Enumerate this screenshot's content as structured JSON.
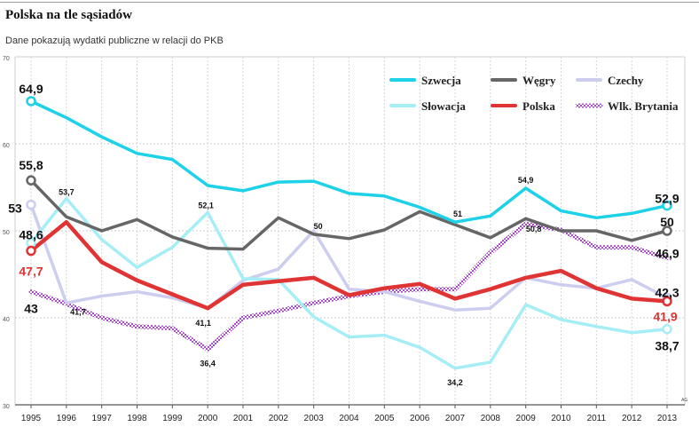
{
  "title": "Polska na tle sąsiadów",
  "subtitle": "Dane pokazują wydatki publiczne w relacji do PKB",
  "credit": "AG",
  "chart_data": {
    "type": "line",
    "title": "Polska na tle sąsiadów",
    "subtitle": "Dane pokazują wydatki publiczne w relacji do PKB",
    "xlabel": "",
    "ylabel": "",
    "ylim": [
      30,
      70
    ],
    "yticks": [
      "30",
      "40",
      "50",
      "60",
      "70"
    ],
    "grid": true,
    "legend_position": "top-right",
    "x": [
      "1995",
      "1996",
      "1997",
      "1998",
      "1999",
      "2000",
      "2001",
      "2002",
      "2003",
      "2004",
      "2005",
      "2006",
      "2007",
      "2008",
      "2009",
      "2010",
      "2011",
      "2012",
      "2013"
    ],
    "series": [
      {
        "name": "Szwecja",
        "color": "#1dd1e8",
        "style": "solid",
        "values": [
          64.9,
          63.0,
          60.8,
          58.9,
          58.2,
          55.2,
          54.6,
          55.6,
          55.7,
          54.3,
          54.0,
          52.7,
          51.0,
          51.7,
          54.9,
          52.3,
          51.5,
          52.0,
          52.9
        ]
      },
      {
        "name": "Węgry",
        "color": "#666666",
        "style": "solid",
        "values": [
          55.8,
          51.6,
          50.0,
          51.3,
          49.3,
          48.0,
          47.9,
          51.5,
          49.6,
          49.1,
          50.1,
          52.2,
          50.7,
          49.2,
          51.4,
          50.0,
          50.0,
          48.9,
          50.0
        ]
      },
      {
        "name": "Czechy",
        "color": "#cdcdf0",
        "style": "solid",
        "values": [
          53.0,
          41.7,
          42.5,
          43.0,
          42.3,
          41.1,
          44.3,
          45.6,
          50.0,
          43.3,
          43.0,
          41.9,
          40.9,
          41.1,
          44.6,
          43.8,
          43.4,
          44.4,
          42.3
        ]
      },
      {
        "name": "Słowacja",
        "color": "#a6eef6",
        "style": "solid",
        "values": [
          48.6,
          53.7,
          49.0,
          45.8,
          48.1,
          52.1,
          44.5,
          44.4,
          40.1,
          37.8,
          38.0,
          36.6,
          34.2,
          34.9,
          41.5,
          39.8,
          39.0,
          38.3,
          38.7
        ]
      },
      {
        "name": "Polska",
        "color": "#e03333",
        "style": "solid",
        "values": [
          47.7,
          51.0,
          46.4,
          44.3,
          42.7,
          41.1,
          43.8,
          44.2,
          44.6,
          42.6,
          43.4,
          43.9,
          42.2,
          43.3,
          44.6,
          45.4,
          43.4,
          42.2,
          41.9
        ]
      },
      {
        "name": "Wlk. Brytania",
        "color": "#a64dc5",
        "style": "checker",
        "values": [
          43.0,
          41.6,
          40.0,
          39.0,
          38.8,
          36.4,
          40.0,
          40.8,
          41.7,
          42.5,
          43.0,
          43.3,
          43.3,
          47.5,
          50.8,
          50.1,
          48.1,
          48.1,
          46.9
        ]
      }
    ],
    "data_labels": [
      {
        "series": "Szwecja",
        "index": 0,
        "text": "64,9",
        "size": "big",
        "color": "#111111"
      },
      {
        "series": "Szwecja",
        "index": 14,
        "text": "54,9",
        "size": "small",
        "color": "#111111"
      },
      {
        "series": "Szwecja",
        "index": 12,
        "text": "51",
        "size": "small",
        "color": "#111111"
      },
      {
        "series": "Szwecja",
        "index": 18,
        "text": "52,9",
        "size": "big",
        "color": "#111111"
      },
      {
        "series": "Węgry",
        "index": 0,
        "text": "55,8",
        "size": "big",
        "color": "#111111"
      },
      {
        "series": "Węgry",
        "index": 18,
        "text": "50",
        "size": "big",
        "color": "#111111"
      },
      {
        "series": "Czechy",
        "index": 0,
        "text": "53",
        "size": "big",
        "color": "#111111"
      },
      {
        "series": "Czechy",
        "index": 1,
        "text": "41,7",
        "size": "small",
        "color": "#111111"
      },
      {
        "series": "Czechy",
        "index": 8,
        "text": "50",
        "size": "small",
        "color": "#111111"
      },
      {
        "series": "Czechy",
        "index": 18,
        "text": "42,3",
        "size": "big",
        "color": "#111111"
      },
      {
        "series": "Słowacja",
        "index": 0,
        "text": "48,6",
        "size": "big",
        "color": "#111111"
      },
      {
        "series": "Słowacja",
        "index": 1,
        "text": "53,7",
        "size": "small",
        "color": "#111111"
      },
      {
        "series": "Słowacja",
        "index": 5,
        "text": "52,1",
        "size": "small",
        "color": "#111111"
      },
      {
        "series": "Słowacja",
        "index": 12,
        "text": "34,2",
        "size": "small",
        "color": "#111111"
      },
      {
        "series": "Słowacja",
        "index": 18,
        "text": "38,7",
        "size": "big",
        "color": "#111111"
      },
      {
        "series": "Polska",
        "index": 0,
        "text": "47,7",
        "size": "big",
        "color": "#e03333"
      },
      {
        "series": "Polska",
        "index": 5,
        "text": "41,1",
        "size": "small",
        "color": "#111111"
      },
      {
        "series": "Polska",
        "index": 18,
        "text": "41,9",
        "size": "big",
        "color": "#e03333"
      },
      {
        "series": "Wlk. Brytania",
        "index": 0,
        "text": "43",
        "size": "big",
        "color": "#111111"
      },
      {
        "series": "Wlk. Brytania",
        "index": 5,
        "text": "36,4",
        "size": "small",
        "color": "#111111"
      },
      {
        "series": "Wlk. Brytania",
        "index": 14,
        "text": "50,8",
        "size": "small",
        "color": "#111111"
      },
      {
        "series": "Wlk. Brytania",
        "index": 18,
        "text": "46,9",
        "size": "big",
        "color": "#111111"
      }
    ],
    "endpoint_markers": [
      {
        "series": "Szwecja",
        "indices": [
          0,
          18
        ]
      },
      {
        "series": "Węgry",
        "indices": [
          0,
          18
        ]
      },
      {
        "series": "Czechy",
        "indices": [
          0,
          18
        ]
      },
      {
        "series": "Słowacja",
        "indices": [
          0,
          18
        ]
      },
      {
        "series": "Polska",
        "indices": [
          0,
          18
        ]
      }
    ]
  }
}
